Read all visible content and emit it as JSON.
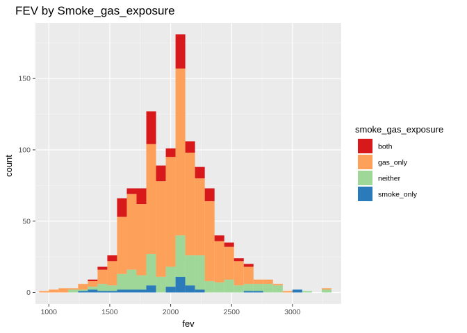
{
  "chart_data": {
    "type": "bar",
    "title": "FEV by Smoke_gas_exposure",
    "xlabel": "fev",
    "ylabel": "count",
    "xlim": [
      890,
      3400
    ],
    "ylim": [
      -8,
      189
    ],
    "xticks": [
      1000,
      1500,
      2000,
      2500,
      3000
    ],
    "yticks": [
      0,
      50,
      100,
      150
    ],
    "bin_width": 80,
    "grid": true,
    "legend_position": "right",
    "legend_title": "smoke_gas_exposure",
    "x": [
      960,
      1040,
      1120,
      1200,
      1280,
      1360,
      1440,
      1520,
      1600,
      1680,
      1760,
      1840,
      1920,
      2000,
      2080,
      2160,
      2240,
      2320,
      2400,
      2480,
      2560,
      2640,
      2720,
      2800,
      2880,
      2960,
      3040,
      3120,
      3200,
      3280
    ],
    "series": [
      {
        "name": "smoke_only",
        "color": "#2b7bba",
        "values": [
          0,
          0,
          0,
          0,
          1,
          2,
          1,
          1,
          2,
          2,
          2,
          5,
          0,
          4,
          11,
          5,
          2,
          0,
          0,
          0,
          0,
          1,
          1,
          0,
          0,
          0,
          2,
          0,
          0,
          0
        ]
      },
      {
        "name": "neither",
        "color": "#9ed798",
        "values": [
          0,
          0,
          0,
          2,
          1,
          2,
          5,
          4,
          11,
          14,
          10,
          22,
          11,
          14,
          29,
          21,
          24,
          8,
          7,
          9,
          5,
          5,
          5,
          6,
          5,
          0,
          0,
          1,
          0,
          2
        ]
      },
      {
        "name": "gas_only",
        "color": "#fda15a",
        "values": [
          1,
          2,
          3,
          1,
          4,
          4,
          10,
          17,
          40,
          53,
          50,
          77,
          67,
          77,
          117,
          72,
          54,
          56,
          29,
          23,
          17,
          12,
          3,
          3,
          1,
          1,
          0,
          0,
          0,
          1
        ]
      },
      {
        "name": "both",
        "color": "#d7191c",
        "values": [
          0,
          0,
          0,
          0,
          0,
          1,
          2,
          4,
          13,
          4,
          11,
          23,
          11,
          6,
          24,
          8,
          8,
          9,
          4,
          3,
          2,
          2,
          0,
          0,
          0,
          0,
          0,
          0,
          0,
          0
        ]
      }
    ]
  }
}
